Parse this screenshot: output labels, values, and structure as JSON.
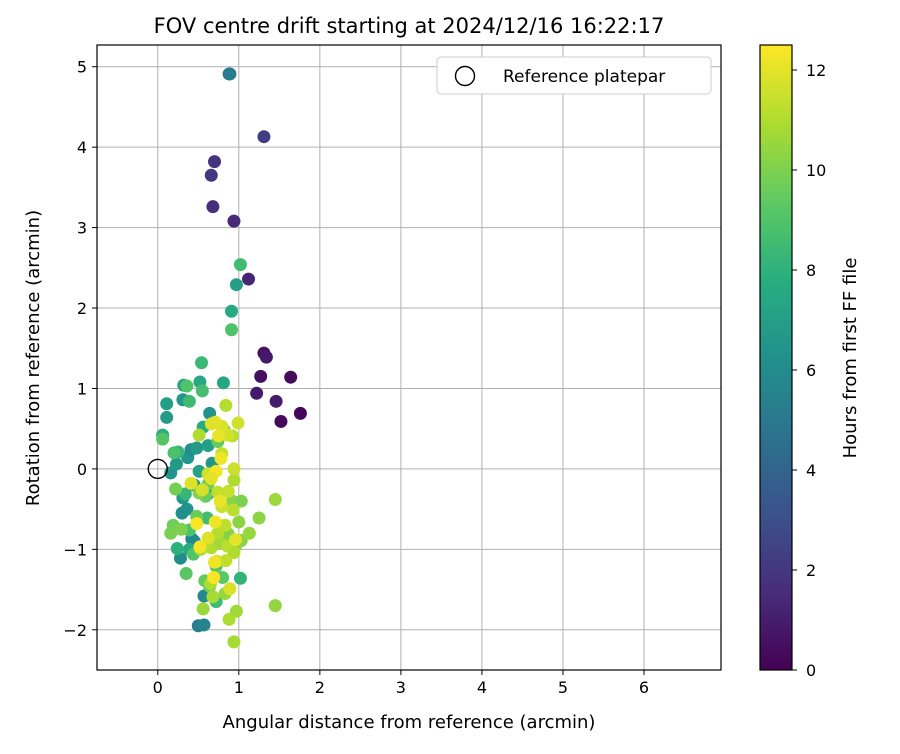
{
  "chart_data": {
    "type": "scatter",
    "title": "FOV centre drift starting at 2024/12/16 16:22:17",
    "xlabel": "Angular distance from reference (arcmin)",
    "ylabel": "Rotation from reference (arcmin)",
    "xlim": [
      -0.75,
      6.95
    ],
    "ylim": [
      -2.5,
      5.27
    ],
    "xticks": [
      0,
      1,
      2,
      3,
      4,
      5,
      6
    ],
    "yticks": [
      -2,
      -1,
      0,
      1,
      2,
      3,
      4,
      5
    ],
    "grid": true,
    "legend": {
      "position": "top-right",
      "entries": [
        "Reference platepar"
      ]
    },
    "reference_point": {
      "x": 0,
      "y": 0
    },
    "colorbar": {
      "label": "Hours from first FF file",
      "colormap": "viridis",
      "range": [
        0,
        12.5
      ],
      "ticks": [
        0,
        2,
        4,
        6,
        8,
        10,
        12
      ]
    },
    "points": [
      {
        "x": 1.76,
        "y": 0.69,
        "c": 0.2
      },
      {
        "x": 1.52,
        "y": 0.59,
        "c": 0.3
      },
      {
        "x": 1.64,
        "y": 1.14,
        "c": 0.4
      },
      {
        "x": 1.27,
        "y": 1.15,
        "c": 0.5
      },
      {
        "x": 1.31,
        "y": 1.44,
        "c": 0.6
      },
      {
        "x": 1.34,
        "y": 1.39,
        "c": 0.8
      },
      {
        "x": 1.22,
        "y": 0.94,
        "c": 0.9
      },
      {
        "x": 1.46,
        "y": 0.84,
        "c": 1.0
      },
      {
        "x": 1.12,
        "y": 2.36,
        "c": 1.3
      },
      {
        "x": 0.94,
        "y": 3.08,
        "c": 1.5
      },
      {
        "x": 0.68,
        "y": 3.26,
        "c": 1.7
      },
      {
        "x": 0.7,
        "y": 3.82,
        "c": 1.8
      },
      {
        "x": 0.66,
        "y": 3.65,
        "c": 2.0
      },
      {
        "x": 1.31,
        "y": 4.13,
        "c": 2.2
      },
      {
        "x": 0.88,
        "y": 4.91,
        "c": 4.8
      },
      {
        "x": 0.89,
        "y": 4.91,
        "c": 5.2
      },
      {
        "x": 0.5,
        "y": -1.95,
        "c": 5.3
      },
      {
        "x": 0.57,
        "y": -1.94,
        "c": 5.5
      },
      {
        "x": 0.57,
        "y": -1.58,
        "c": 5.8
      },
      {
        "x": 0.42,
        "y": -0.87,
        "c": 5.6
      },
      {
        "x": 0.28,
        "y": -1.11,
        "c": 6.1
      },
      {
        "x": 0.45,
        "y": -0.9,
        "c": 5.9
      },
      {
        "x": 0.36,
        "y": -0.5,
        "c": 6.3
      },
      {
        "x": 0.31,
        "y": -0.36,
        "c": 6.6
      },
      {
        "x": 0.3,
        "y": -0.55,
        "c": 6.2
      },
      {
        "x": 0.16,
        "y": -0.05,
        "c": 6.4
      },
      {
        "x": 0.23,
        "y": 0.06,
        "c": 6.7
      },
      {
        "x": 0.37,
        "y": 0.14,
        "c": 6.5
      },
      {
        "x": 0.41,
        "y": 0.24,
        "c": 6.0
      },
      {
        "x": 0.48,
        "y": 0.26,
        "c": 6.8
      },
      {
        "x": 0.62,
        "y": 0.29,
        "c": 7.0
      },
      {
        "x": 0.45,
        "y": -0.2,
        "c": 6.9
      },
      {
        "x": 0.51,
        "y": -0.03,
        "c": 7.1
      },
      {
        "x": 0.62,
        "y": -0.31,
        "c": 7.0
      },
      {
        "x": 0.67,
        "y": 0.07,
        "c": 6.6
      },
      {
        "x": 0.64,
        "y": 0.69,
        "c": 6.4
      },
      {
        "x": 0.31,
        "y": 0.86,
        "c": 6.5
      },
      {
        "x": 0.11,
        "y": 0.64,
        "c": 6.8
      },
      {
        "x": 0.11,
        "y": 0.81,
        "c": 7.0
      },
      {
        "x": 0.32,
        "y": 1.04,
        "c": 7.3
      },
      {
        "x": 0.52,
        "y": 1.08,
        "c": 7.5
      },
      {
        "x": 0.81,
        "y": 1.07,
        "c": 7.4
      },
      {
        "x": 0.97,
        "y": 2.29,
        "c": 7.0
      },
      {
        "x": 0.91,
        "y": 1.96,
        "c": 7.6
      },
      {
        "x": 0.06,
        "y": 0.42,
        "c": 7.8
      },
      {
        "x": 0.56,
        "y": 0.52,
        "c": 7.7
      },
      {
        "x": 0.39,
        "y": -1.0,
        "c": 7.6
      },
      {
        "x": 0.24,
        "y": -0.99,
        "c": 7.9
      },
      {
        "x": 0.54,
        "y": 1.32,
        "c": 8.4
      },
      {
        "x": 0.39,
        "y": 0.84,
        "c": 8.5
      },
      {
        "x": 1.02,
        "y": 2.54,
        "c": 8.6
      },
      {
        "x": 0.91,
        "y": 1.73,
        "c": 8.9
      },
      {
        "x": 0.72,
        "y": -1.65,
        "c": 8.5
      },
      {
        "x": 1.02,
        "y": -1.36,
        "c": 8.1
      },
      {
        "x": 0.25,
        "y": 0.21,
        "c": 8.2
      },
      {
        "x": 0.34,
        "y": -0.31,
        "c": 8.3
      },
      {
        "x": 0.55,
        "y": 0.97,
        "c": 8.7
      },
      {
        "x": 0.36,
        "y": 1.03,
        "c": 9.0
      },
      {
        "x": 0.06,
        "y": 0.37,
        "c": 9.1
      },
      {
        "x": 0.2,
        "y": 0.2,
        "c": 8.8
      },
      {
        "x": 0.61,
        "y": -0.61,
        "c": 8.6
      },
      {
        "x": 0.39,
        "y": -0.76,
        "c": 8.9
      },
      {
        "x": 0.44,
        "y": -1.06,
        "c": 9.0
      },
      {
        "x": 0.35,
        "y": -1.3,
        "c": 9.2
      },
      {
        "x": 0.72,
        "y": -1.21,
        "c": 9.1
      },
      {
        "x": 0.8,
        "y": -1.35,
        "c": 9.3
      },
      {
        "x": 0.64,
        "y": -1.46,
        "c": 9.4
      },
      {
        "x": 0.58,
        "y": -1.39,
        "c": 9.5
      },
      {
        "x": 0.59,
        "y": -0.34,
        "c": 9.6
      },
      {
        "x": 0.22,
        "y": -0.25,
        "c": 9.8
      },
      {
        "x": 0.19,
        "y": -0.7,
        "c": 9.7
      },
      {
        "x": 0.16,
        "y": -0.8,
        "c": 9.9
      },
      {
        "x": 0.29,
        "y": -0.75,
        "c": 10.0
      },
      {
        "x": 0.48,
        "y": -0.59,
        "c": 9.6
      },
      {
        "x": 0.51,
        "y": -0.3,
        "c": 10.1
      },
      {
        "x": 0.62,
        "y": -0.19,
        "c": 9.8
      },
      {
        "x": 0.74,
        "y": 0.34,
        "c": 9.5
      },
      {
        "x": 0.82,
        "y": 0.48,
        "c": 9.9
      },
      {
        "x": 0.92,
        "y": -0.4,
        "c": 10.2
      },
      {
        "x": 1.03,
        "y": -0.4,
        "c": 10.0
      },
      {
        "x": 1.0,
        "y": -0.66,
        "c": 10.3
      },
      {
        "x": 0.87,
        "y": -0.81,
        "c": 10.1
      },
      {
        "x": 0.96,
        "y": -0.96,
        "c": 10.4
      },
      {
        "x": 1.03,
        "y": -0.89,
        "c": 10.2
      },
      {
        "x": 1.13,
        "y": -0.8,
        "c": 10.5
      },
      {
        "x": 1.25,
        "y": -0.61,
        "c": 10.3
      },
      {
        "x": 1.45,
        "y": -0.38,
        "c": 10.6
      },
      {
        "x": 1.45,
        "y": -1.7,
        "c": 10.4
      },
      {
        "x": 0.97,
        "y": -1.77,
        "c": 10.7
      },
      {
        "x": 0.88,
        "y": -1.87,
        "c": 10.9
      },
      {
        "x": 0.94,
        "y": -2.15,
        "c": 10.8
      },
      {
        "x": 0.83,
        "y": -1.55,
        "c": 10.5
      },
      {
        "x": 0.56,
        "y": -1.74,
        "c": 10.6
      },
      {
        "x": 0.68,
        "y": -1.59,
        "c": 10.8
      },
      {
        "x": 0.65,
        "y": -1.43,
        "c": 11.0
      },
      {
        "x": 0.53,
        "y": -1.0,
        "c": 10.9
      },
      {
        "x": 0.66,
        "y": -0.98,
        "c": 11.1
      },
      {
        "x": 0.77,
        "y": -0.92,
        "c": 10.7
      },
      {
        "x": 0.86,
        "y": -0.96,
        "c": 11.2
      },
      {
        "x": 0.94,
        "y": -1.04,
        "c": 11.0
      },
      {
        "x": 0.84,
        "y": -1.14,
        "c": 11.3
      },
      {
        "x": 0.73,
        "y": -1.15,
        "c": 11.4
      },
      {
        "x": 0.74,
        "y": -0.8,
        "c": 11.1
      },
      {
        "x": 0.83,
        "y": -0.7,
        "c": 11.3
      },
      {
        "x": 0.93,
        "y": -0.51,
        "c": 11.2
      },
      {
        "x": 0.79,
        "y": -0.47,
        "c": 11.5
      },
      {
        "x": 0.87,
        "y": -0.28,
        "c": 11.4
      },
      {
        "x": 0.74,
        "y": -0.29,
        "c": 11.3
      },
      {
        "x": 0.62,
        "y": -0.06,
        "c": 11.6
      },
      {
        "x": 0.94,
        "y": -0.14,
        "c": 11.0
      },
      {
        "x": 0.94,
        "y": 0.0,
        "c": 11.5
      },
      {
        "x": 0.79,
        "y": 0.19,
        "c": 11.4
      },
      {
        "x": 0.92,
        "y": 0.41,
        "c": 11.2
      },
      {
        "x": 0.86,
        "y": 0.42,
        "c": 11.7
      },
      {
        "x": 0.99,
        "y": 0.57,
        "c": 11.6
      },
      {
        "x": 0.79,
        "y": 0.53,
        "c": 11.8
      },
      {
        "x": 0.84,
        "y": 0.79,
        "c": 11.1
      },
      {
        "x": 0.51,
        "y": 0.42,
        "c": 11.0
      },
      {
        "x": 0.71,
        "y": 0.58,
        "c": 12.0
      },
      {
        "x": 0.66,
        "y": 0.56,
        "c": 11.9
      },
      {
        "x": 0.75,
        "y": 0.41,
        "c": 12.1
      },
      {
        "x": 0.78,
        "y": 0.13,
        "c": 12.2
      },
      {
        "x": 0.72,
        "y": -0.03,
        "c": 12.3
      },
      {
        "x": 0.66,
        "y": -0.12,
        "c": 12.0
      },
      {
        "x": 0.41,
        "y": -0.18,
        "c": 11.9
      },
      {
        "x": 0.77,
        "y": -0.4,
        "c": 12.1
      },
      {
        "x": 0.71,
        "y": -0.66,
        "c": 12.2
      },
      {
        "x": 0.48,
        "y": -0.68,
        "c": 12.4
      },
      {
        "x": 0.52,
        "y": -0.97,
        "c": 12.3
      },
      {
        "x": 0.7,
        "y": -1.16,
        "c": 12.2
      },
      {
        "x": 0.69,
        "y": -1.35,
        "c": 12.4
      },
      {
        "x": 0.89,
        "y": -1.49,
        "c": 11.8
      },
      {
        "x": 0.96,
        "y": -0.88,
        "c": 12.0
      },
      {
        "x": 0.62,
        "y": -0.86,
        "c": 11.9
      },
      {
        "x": 0.55,
        "y": -0.26,
        "c": 11.7
      }
    ]
  }
}
